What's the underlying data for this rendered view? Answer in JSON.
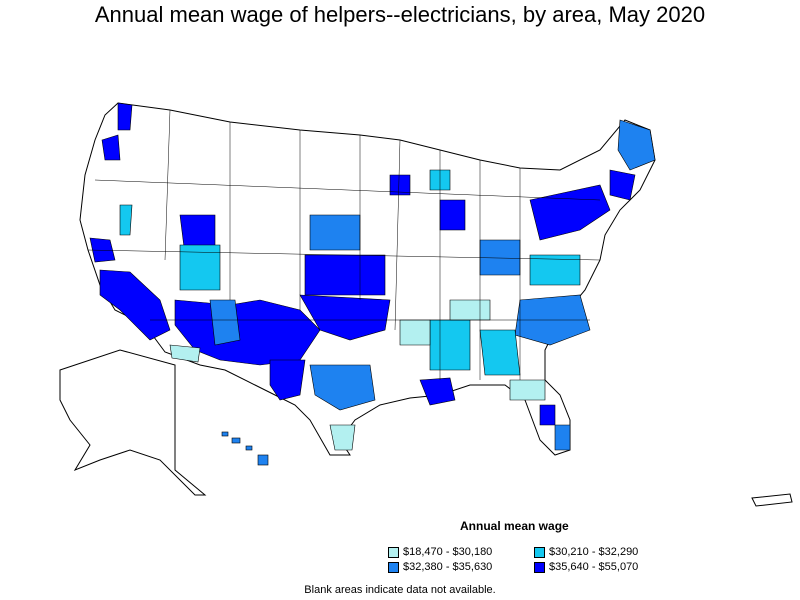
{
  "title": "Annual mean wage of helpers--electricians, by area, May 2020",
  "legend": {
    "title": "Annual mean wage",
    "items": [
      {
        "label": "$18,470 - $30,180",
        "color": "#b3f0f0"
      },
      {
        "label": "$30,210 - $32,290",
        "color": "#14c8f0"
      },
      {
        "label": "$32,380 - $35,630",
        "color": "#1e82f0"
      },
      {
        "label": "$35,640 - $55,070",
        "color": "#0000ff"
      }
    ]
  },
  "note": "Blank areas indicate data not available.",
  "colors": {
    "tier1": "#b3f0f0",
    "tier2": "#14c8f0",
    "tier3": "#1e82f0",
    "tier4": "#0000ff",
    "blank": "#ffffff",
    "border": "#000000"
  }
}
